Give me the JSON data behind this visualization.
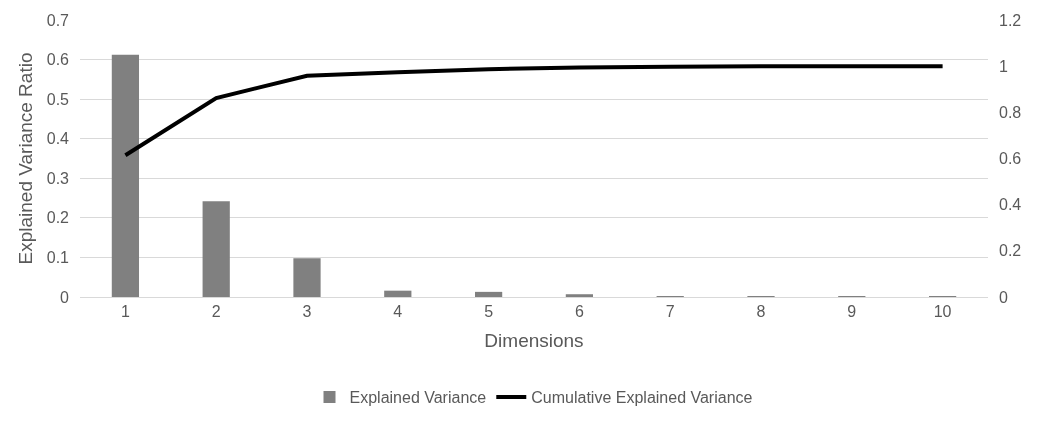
{
  "chart_data": {
    "type": "bar",
    "xlabel": "Dimensions",
    "ylabel": "Explained Variance Ratio",
    "categories": [
      "1",
      "2",
      "3",
      "4",
      "5",
      "6",
      "7",
      "8",
      "9",
      "10"
    ],
    "series": [
      {
        "name": "Explained Variance",
        "color": "#808080",
        "values": [
          0.612,
          0.242,
          0.098,
          0.016,
          0.013,
          0.007,
          0.002,
          0.001,
          0.001,
          0.001
        ]
      },
      {
        "name": "Cumulative Explained Variance",
        "type": "line",
        "axis": "y2",
        "color": "#000000",
        "values": [
          0.614,
          0.862,
          0.958,
          0.974,
          0.987,
          0.994,
          0.998,
          1,
          1,
          1
        ]
      }
    ],
    "ylim": [
      0,
      0.7
    ],
    "yticks": [
      0,
      0.1,
      0.2,
      0.3,
      0.4,
      0.5,
      0.6,
      0.7
    ],
    "y2lim": [
      0,
      1.2
    ],
    "y2ticks": [
      0,
      0.2,
      0.4,
      0.6,
      0.8,
      1,
      1.2
    ],
    "grid": "y",
    "legend": "bottom",
    "marker": "none",
    "line_style": "solid"
  }
}
